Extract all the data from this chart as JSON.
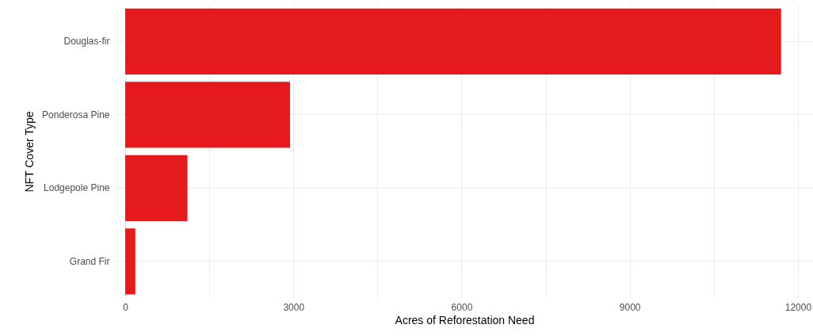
{
  "chart_data": {
    "type": "bar",
    "orientation": "horizontal",
    "xlabel": "Acres of Reforestation Need",
    "ylabel": "NFT Cover Type",
    "categories": [
      "Douglas-fir",
      "Ponderosa Pine",
      "Lodgepole Pine",
      "Grand Fir"
    ],
    "values": [
      11700,
      2940,
      1110,
      180
    ],
    "color": "#e41a1c",
    "xlim": [
      -170,
      12270
    ],
    "xticks": [
      0,
      {
        "value": 1500,
        "label": null
      },
      3000,
      {
        "value": 4500,
        "label": null
      },
      6000,
      {
        "value": 7500,
        "label": null
      },
      9000,
      {
        "value": 10500,
        "label": null
      },
      12000
    ],
    "grid": true
  }
}
